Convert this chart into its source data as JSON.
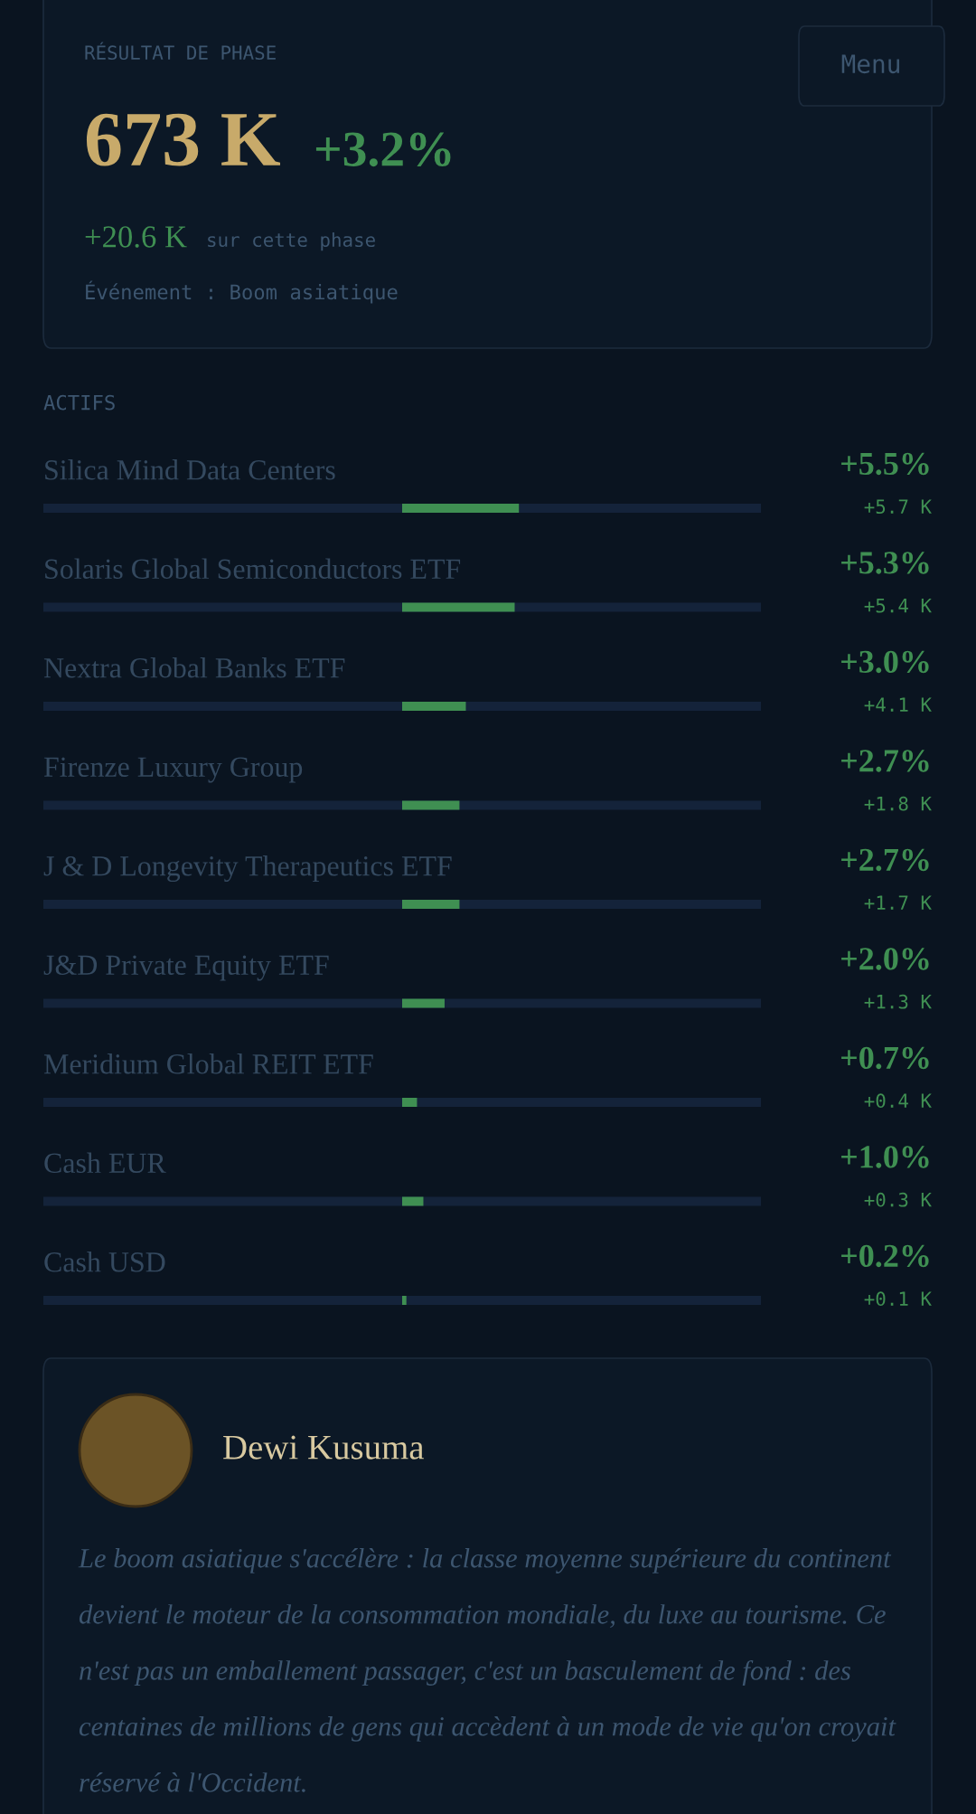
{
  "chart_data": {
    "type": "bar",
    "orientation": "horizontal",
    "title": "ACTIFS",
    "categories": [
      "Silica Mind Data Centers",
      "Solaris Global Semiconductors ETF",
      "Nextra Global Banks ETF",
      "Firenze Luxury Group",
      "J & D Longevity Therapeutics ETF",
      "J&D Private Equity ETF",
      "Meridium Global REIT ETF",
      "Cash EUR",
      "Cash USD"
    ],
    "values": [
      5.5,
      5.3,
      3.0,
      2.7,
      2.7,
      2.0,
      0.7,
      1.0,
      0.2
    ],
    "value_labels": [
      "+5.5%",
      "+5.3%",
      "+3.0%",
      "+2.7%",
      "+2.7%",
      "+2.0%",
      "+0.7%",
      "+1.0%",
      "+0.2%"
    ],
    "color": "#3f8f52",
    "xlim": [
      -16.9,
      16.9
    ],
    "tick_labels": false,
    "annotations": [
      "+5.7 K",
      "+5.4 K",
      "+4.1 K",
      "+1.8 K",
      "+1.7 K",
      "+1.3 K",
      "+0.4 K",
      "+0.3 K",
      "+0.1 K",
      "RÉSULTAT DE PHASE",
      "673 K",
      "+3.2%",
      "+20.6 K",
      "sur cette phase",
      "Événement : Boom asiatique",
      "Menu",
      "Dewi Kusuma",
      "Le boom asiatique s'accélère : la classe moyenne supérieure du continent devient le moteur de la consommation mondiale, du luxe au tourisme. Ce n'est pas un emballement passager, c'est un basculement de fond : des centaines de millions de gens qui accèdent à un mode de vie qu'on croyait réservé à l'Occident."
    ]
  }
}
